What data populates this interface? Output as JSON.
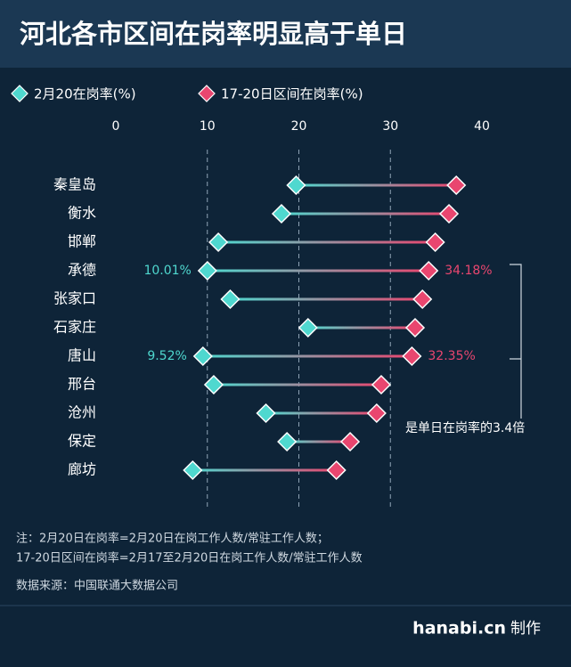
{
  "chart_data": {
    "type": "dumbbell",
    "title": "河北各市区间在岗率明显高于单日",
    "categories": [
      "秦皇岛",
      "衡水",
      "邯郸",
      "承德",
      "张家口",
      "石家庄",
      "唐山",
      "邢台",
      "沧州",
      "保定",
      "廊坊"
    ],
    "series": [
      {
        "name": "2月20在岗率(%)",
        "color": "#4fd8cf",
        "values": [
          19.7,
          18.1,
          11.2,
          10.01,
          12.5,
          21.0,
          9.52,
          10.7,
          16.4,
          18.7,
          8.4
        ],
        "value_labels": [
          null,
          null,
          null,
          "10.01%",
          null,
          null,
          "9.52%",
          null,
          null,
          null,
          null
        ]
      },
      {
        "name": "17-20日区间在岗率(%)",
        "color": "#e9466f",
        "values": [
          37.2,
          36.4,
          34.9,
          34.18,
          33.5,
          32.7,
          32.35,
          29.0,
          28.5,
          25.6,
          24.1
        ],
        "value_labels": [
          null,
          null,
          null,
          "34.18%",
          null,
          null,
          "32.35%",
          null,
          null,
          null,
          null
        ]
      }
    ],
    "xlim": [
      0,
      40
    ],
    "xticks": [
      0,
      10,
      20,
      30,
      40
    ],
    "grid": true,
    "annotation": "是单日在岗率的3.4倍",
    "notes": [
      "注：2月20日在岗率=2月20日在岗工作人数/常驻工作人数；",
      "17-20日区间在岗率=2月17至2月20日在岗工作人数/常驻工作人数"
    ],
    "source": "数据来源：中国联通大数据公司",
    "credit_site": "hanabi.cn",
    "credit_word": "制作"
  }
}
